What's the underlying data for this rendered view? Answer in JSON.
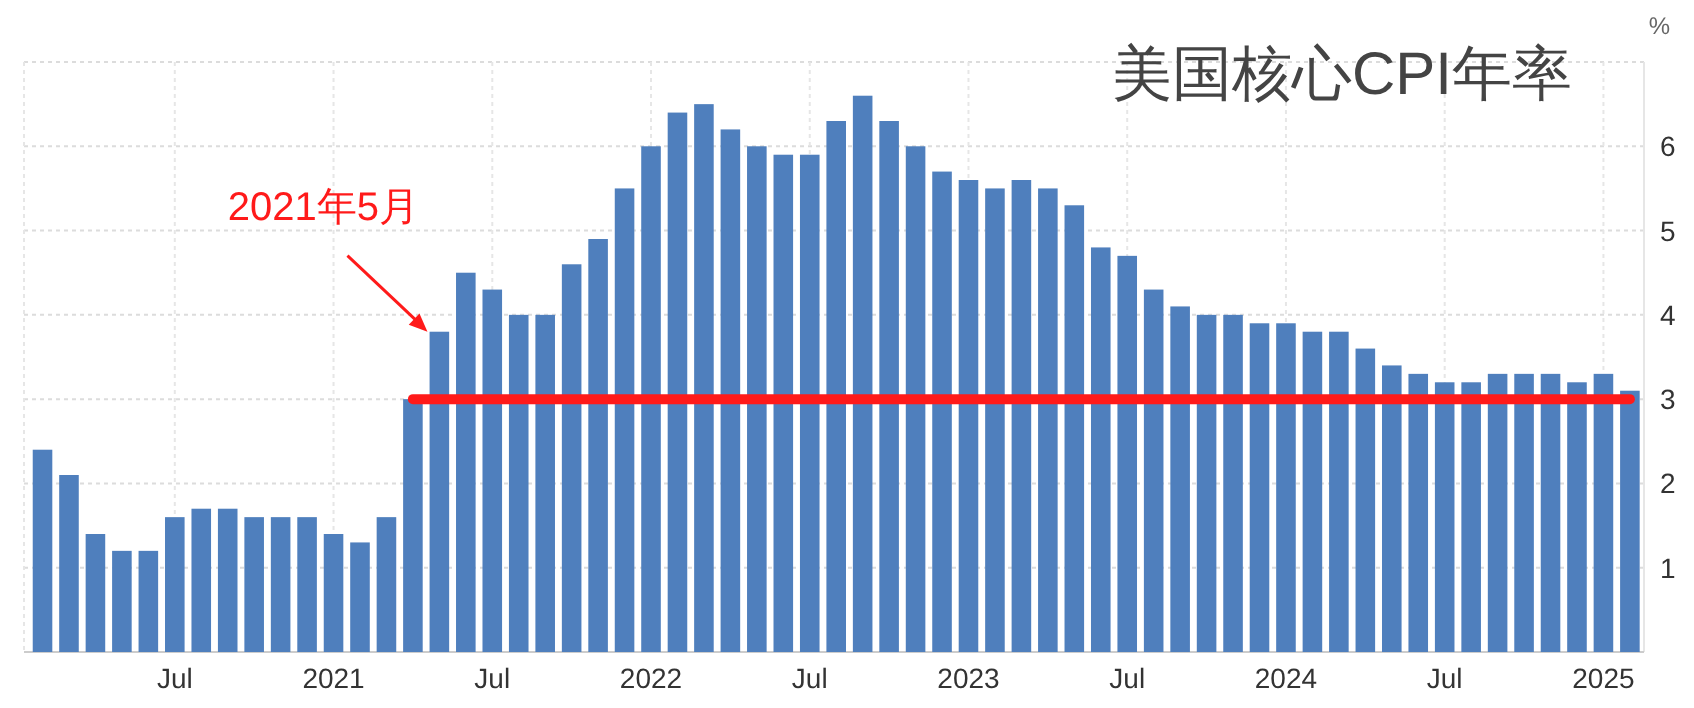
{
  "chart_data": {
    "type": "bar",
    "title": "美国核心CPI年率",
    "ylabel": "%",
    "x": [
      "2020-02",
      "2020-03",
      "2020-04",
      "2020-05",
      "2020-06",
      "2020-07",
      "2020-08",
      "2020-09",
      "2020-10",
      "2020-11",
      "2020-12",
      "2021-01",
      "2021-02",
      "2021-03",
      "2021-04",
      "2021-05",
      "2021-06",
      "2021-07",
      "2021-08",
      "2021-09",
      "2021-10",
      "2021-11",
      "2021-12",
      "2022-01",
      "2022-02",
      "2022-03",
      "2022-04",
      "2022-05",
      "2022-06",
      "2022-07",
      "2022-08",
      "2022-09",
      "2022-10",
      "2022-11",
      "2022-12",
      "2023-01",
      "2023-02",
      "2023-03",
      "2023-04",
      "2023-05",
      "2023-06",
      "2023-07",
      "2023-08",
      "2023-09",
      "2023-10",
      "2023-11",
      "2023-12",
      "2024-01",
      "2024-02",
      "2024-03",
      "2024-04",
      "2024-05",
      "2024-06",
      "2024-07",
      "2024-08",
      "2024-09",
      "2024-10",
      "2024-11",
      "2024-12",
      "2025-01",
      "2025-02"
    ],
    "series": [
      {
        "color": "#4f7fbd",
        "values": [
          2.4,
          2.1,
          1.4,
          1.2,
          1.2,
          1.6,
          1.7,
          1.7,
          1.6,
          1.6,
          1.6,
          1.4,
          1.3,
          1.6,
          3.0,
          3.8,
          4.5,
          4.3,
          4.0,
          4.0,
          4.6,
          4.9,
          5.5,
          6.0,
          6.4,
          6.5,
          6.2,
          6.0,
          5.9,
          5.9,
          6.3,
          6.6,
          6.3,
          6.0,
          5.7,
          5.6,
          5.5,
          5.6,
          5.5,
          5.3,
          4.8,
          4.7,
          4.3,
          4.1,
          4.0,
          4.0,
          3.9,
          3.9,
          3.8,
          3.8,
          3.6,
          3.4,
          3.3,
          3.2,
          3.2,
          3.3,
          3.3,
          3.3,
          3.2,
          3.3,
          3.1
        ]
      },
      {
        "type": "line",
        "color": "#ff1a1a",
        "values": [
          null,
          null,
          null,
          null,
          null,
          null,
          null,
          null,
          null,
          null,
          null,
          null,
          null,
          null,
          3,
          3,
          3,
          3,
          3,
          3,
          3,
          3,
          3,
          3,
          3,
          3,
          3,
          3,
          3,
          3,
          3,
          3,
          3,
          3,
          3,
          3,
          3,
          3,
          3,
          3,
          3,
          3,
          3,
          3,
          3,
          3,
          3,
          3,
          3,
          3,
          3,
          3,
          3,
          3,
          3,
          3,
          3,
          3,
          3,
          3,
          3
        ]
      }
    ],
    "xlim": [
      "2020-01-10",
      "2025-02-17"
    ],
    "xticks": [
      {
        "value": "2020-07",
        "label": "Jul"
      },
      {
        "value": "2021-01",
        "label": "2021"
      },
      {
        "value": "2021-07",
        "label": "Jul"
      },
      {
        "value": "2022-01",
        "label": "2022"
      },
      {
        "value": "2022-07",
        "label": "Jul"
      },
      {
        "value": "2023-01",
        "label": "2023"
      },
      {
        "value": "2023-07",
        "label": "Jul"
      },
      {
        "value": "2024-01",
        "label": "2024"
      },
      {
        "value": "2024-07",
        "label": "Jul"
      },
      {
        "value": "2025-01",
        "label": "2025"
      }
    ],
    "ylim": [
      0,
      7
    ],
    "yticks": [
      {
        "value": 0,
        "label": null
      },
      1,
      2,
      3,
      4,
      5,
      6,
      {
        "value": 7,
        "label": null
      }
    ],
    "grid": true,
    "annotations": [
      {
        "text": "2021年5月",
        "x": "2021-05",
        "y": 3.8
      }
    ]
  }
}
